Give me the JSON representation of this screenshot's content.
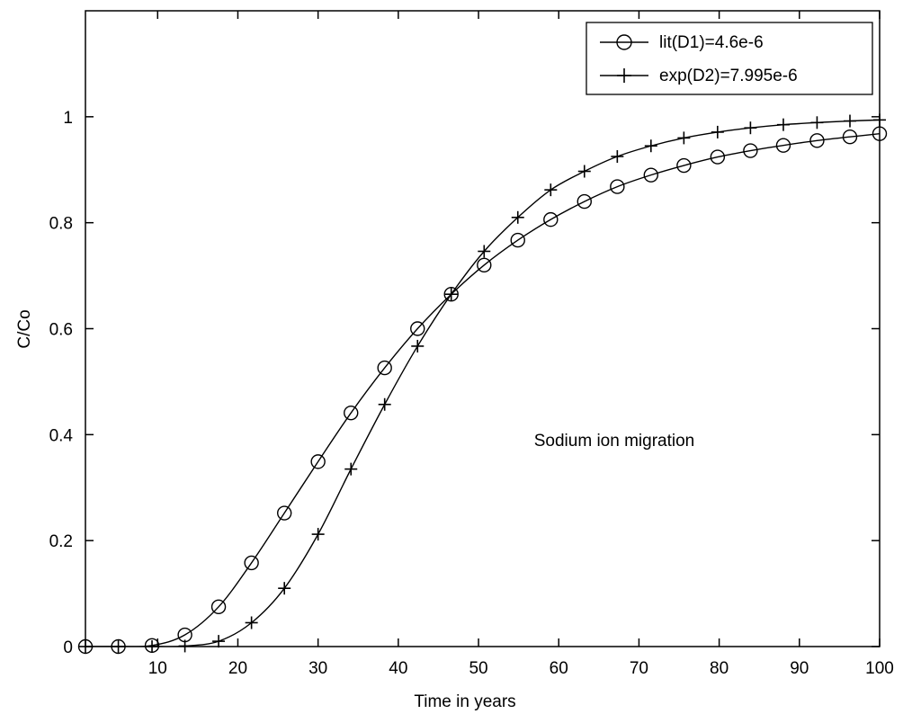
{
  "chart_data": {
    "type": "line",
    "title": "",
    "xlabel": "Time in years",
    "ylabel": "C/Co",
    "xlim": [
      1,
      100
    ],
    "ylim": [
      0,
      1.2
    ],
    "xticks": [
      10,
      20,
      30,
      40,
      50,
      60,
      70,
      80,
      90,
      100
    ],
    "yticks": [
      0,
      0.2,
      0.4,
      0.6,
      0.8,
      1
    ],
    "grid": false,
    "legend_position": "top-right",
    "annotation": "Sodium ion migration",
    "series": [
      {
        "name": "lit(D1)=4.6e-6",
        "marker": "circle",
        "x": [
          1,
          5.1,
          9.3,
          13.4,
          17.6,
          21.7,
          25.8,
          30,
          34.1,
          38.3,
          42.4,
          46.6,
          50.7,
          54.9,
          59,
          63.2,
          67.3,
          71.5,
          75.6,
          79.8,
          83.9,
          88,
          92.2,
          96.3,
          100
        ],
        "values": [
          0,
          0,
          0.002,
          0.022,
          0.075,
          0.158,
          0.252,
          0.349,
          0.441,
          0.526,
          0.6,
          0.665,
          0.72,
          0.767,
          0.806,
          0.84,
          0.868,
          0.89,
          0.908,
          0.924,
          0.936,
          0.946,
          0.955,
          0.962,
          0.968
        ]
      },
      {
        "name": "exp(D2)=7.995e-6",
        "marker": "plus",
        "x": [
          1,
          5.1,
          9.3,
          13.4,
          17.6,
          21.7,
          25.8,
          30,
          34.1,
          38.3,
          42.4,
          46.6,
          50.7,
          54.9,
          59,
          63.2,
          67.3,
          71.5,
          75.6,
          79.8,
          83.9,
          88,
          92.2,
          96.3,
          100
        ],
        "values": [
          0,
          0,
          0,
          0.001,
          0.01,
          0.045,
          0.11,
          0.212,
          0.335,
          0.457,
          0.567,
          0.665,
          0.746,
          0.81,
          0.862,
          0.897,
          0.925,
          0.945,
          0.96,
          0.971,
          0.979,
          0.985,
          0.989,
          0.992,
          0.994
        ]
      }
    ]
  }
}
